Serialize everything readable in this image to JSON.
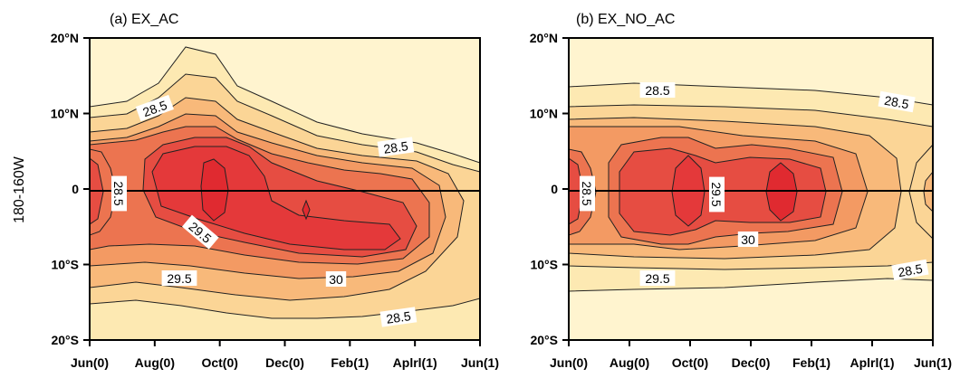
{
  "chart_data": [
    {
      "type": "heatmap",
      "subtype": "filled-contour",
      "title": "(a) EX_AC",
      "ylabel": "180-160W",
      "xlabel": "",
      "x_ticks": [
        "Jun(0)",
        "Aug(0)",
        "Oct(0)",
        "Dec(0)",
        "Feb(1)",
        "Aplrl(1)",
        "Jun(1)"
      ],
      "y_ticks": [
        "20°N",
        "10°N",
        "0",
        "10°S",
        "20°S"
      ],
      "ylim": [
        -20,
        20
      ],
      "contour_levels": [
        26.5,
        27,
        27.5,
        28,
        28.5,
        29,
        29.5,
        30,
        30.5
      ],
      "contour_labels": [
        "28.5",
        "28.5",
        "29.5",
        "30",
        "29.5",
        "28.5",
        "28.5"
      ],
      "fill_colors": [
        "#fff4cf",
        "#fde9b2",
        "#fbd596",
        "#f8b97a",
        "#f39a63",
        "#ec7450",
        "#e64d42",
        "#e4393a",
        "#e02a30",
        "#d51f2a"
      ],
      "equator_line": true
    },
    {
      "type": "heatmap",
      "subtype": "filled-contour",
      "title": "(b) EX_NO_AC",
      "ylabel": "",
      "xlabel": "",
      "x_ticks": [
        "Jun(0)",
        "Aug(0)",
        "Oct(0)",
        "Dec(0)",
        "Feb(1)",
        "Aplrl(1)",
        "Jun(1)"
      ],
      "y_ticks": [
        "20°N",
        "10°N",
        "0",
        "10°S",
        "20°S"
      ],
      "ylim": [
        -20,
        20
      ],
      "contour_levels": [
        26.5,
        27,
        27.5,
        28,
        28.5,
        29,
        29.5,
        30,
        30.5
      ],
      "contour_labels": [
        "28.5",
        "28.5",
        "29.5",
        "30",
        "29.5",
        "28.5",
        "28.5"
      ],
      "fill_colors": [
        "#fff4cf",
        "#fde9b2",
        "#fbd596",
        "#f8b97a",
        "#f39a63",
        "#ec7450",
        "#e64d42",
        "#e4393a",
        "#e02a30",
        "#d51f2a"
      ],
      "equator_line": true
    }
  ]
}
